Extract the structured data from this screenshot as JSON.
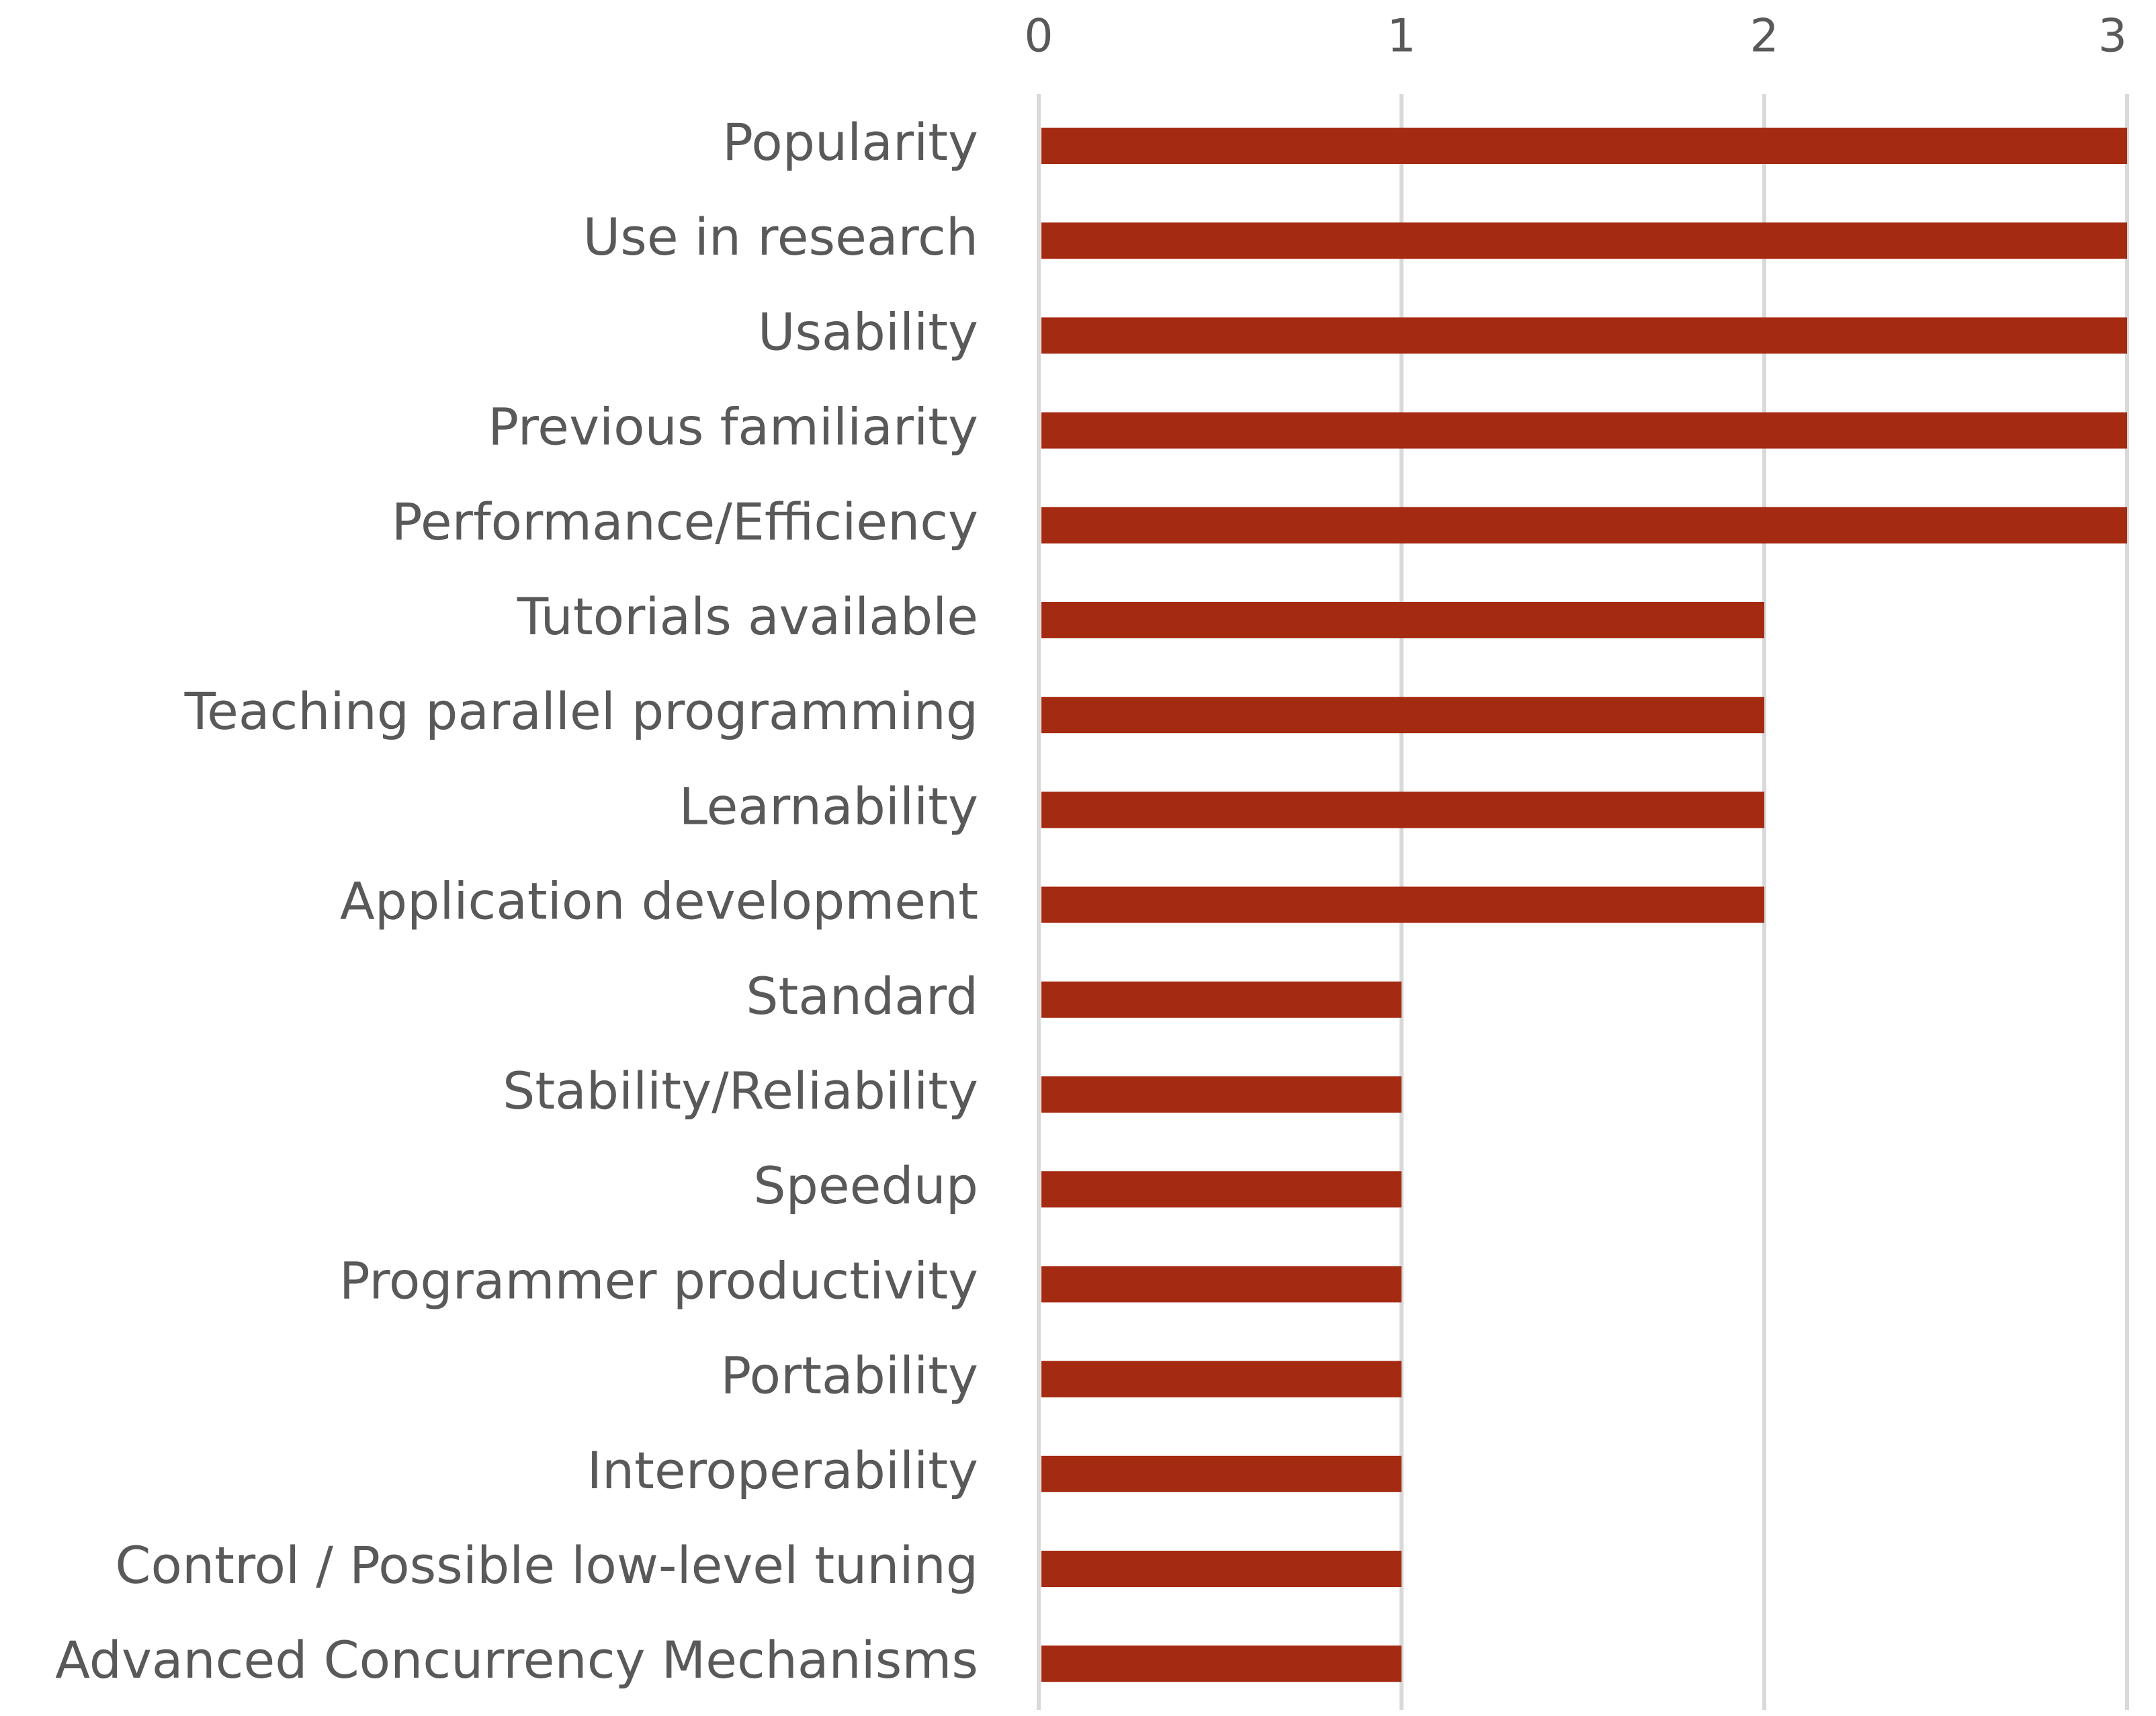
{
  "chart_data": {
    "type": "bar",
    "orientation": "horizontal",
    "title": "",
    "xlabel": "",
    "ylabel": "",
    "categories": [
      "Popularity",
      "Use in research",
      "Usability",
      "Previous familiarity",
      "Performance/Efficiency",
      "Tutorials available",
      "Teaching parallel programming",
      "Learnability",
      "Application development",
      "Standard",
      "Stability/Reliability",
      "Speedup",
      "Programmer productivity",
      "Portability",
      "Interoperability",
      "Control / Possible low-level tuning",
      "Advanced Concurrency Mechanisms"
    ],
    "values": [
      3,
      3,
      3,
      3,
      3,
      2,
      2,
      2,
      2,
      1,
      1,
      1,
      1,
      1,
      1,
      1,
      1
    ],
    "xlim": [
      0,
      3
    ],
    "x_ticks": [
      "0",
      "1",
      "2",
      "3"
    ],
    "x_axis_position": "top",
    "grid": "vertical",
    "legend": "none",
    "colors": {
      "bar": "#A52A12",
      "grid": "#D9D9D9",
      "text": "#595959"
    }
  }
}
